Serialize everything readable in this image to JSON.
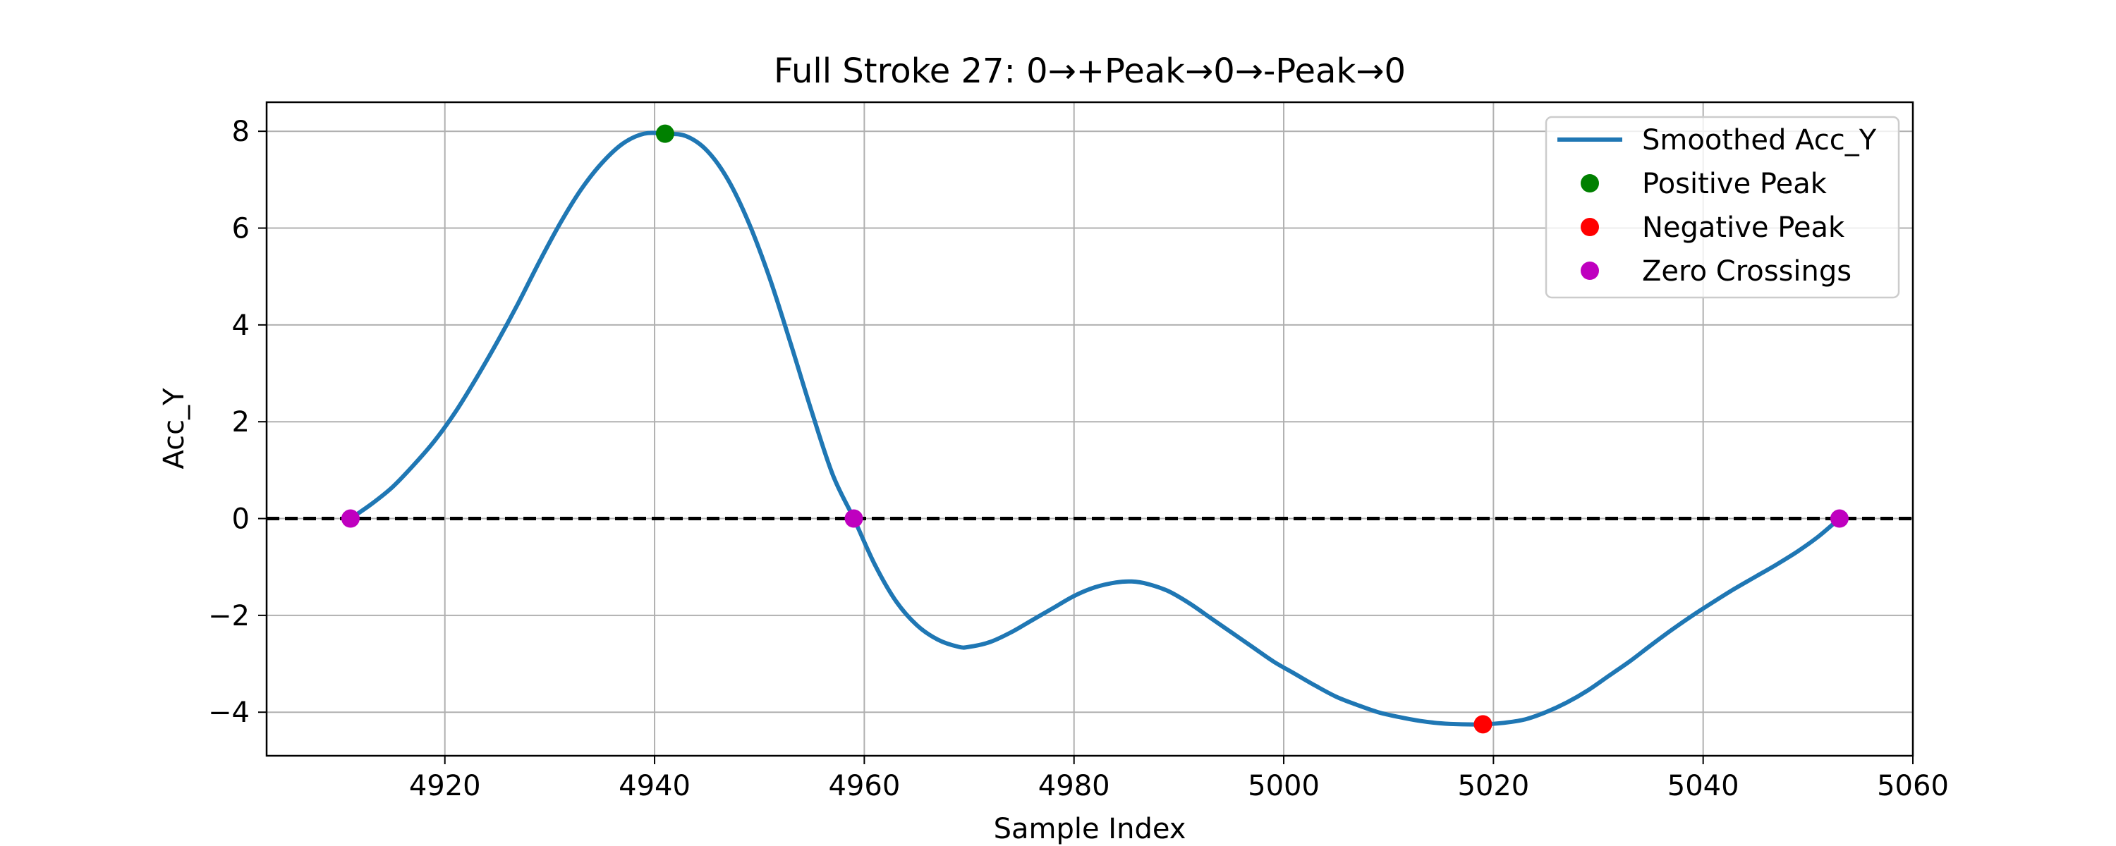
{
  "chart_data": {
    "type": "line",
    "title": "Full Stroke 27: 0→+Peak→0→-Peak→0",
    "xlabel": "Sample Index",
    "ylabel": "Acc_Y",
    "xlim": [
      4903,
      5060
    ],
    "ylim": [
      -4.9,
      8.6
    ],
    "xticks": [
      4920,
      4940,
      4960,
      4980,
      5000,
      5020,
      5040,
      5060
    ],
    "yticks": [
      -4,
      -2,
      0,
      2,
      4,
      6,
      8
    ],
    "grid": true,
    "legend_position": "top-right",
    "zero_line": {
      "y": 0,
      "style": "dashed",
      "color": "#000000"
    },
    "series": [
      {
        "name": "Smoothed Acc_Y",
        "kind": "line",
        "color": "#1f77b4",
        "x": [
          4911,
          4913,
          4915,
          4917,
          4919,
          4921,
          4923,
          4925,
          4927,
          4929,
          4931,
          4933,
          4935,
          4937,
          4939,
          4941,
          4943,
          4945,
          4947,
          4949,
          4951,
          4953,
          4955,
          4957,
          4959,
          4961,
          4963,
          4965,
          4967,
          4969,
          4970,
          4972,
          4974,
          4976,
          4978,
          4980,
          4982,
          4984,
          4985.5,
          4987,
          4989,
          4991,
          4993,
          4995,
          4997,
          4999,
          5001,
          5003,
          5005,
          5007,
          5009,
          5011,
          5013,
          5015,
          5017,
          5019,
          5021,
          5023,
          5025,
          5027,
          5029,
          5031,
          5033,
          5035,
          5037,
          5039,
          5041,
          5043,
          5045,
          5047,
          5049,
          5051,
          5053
        ],
        "y": [
          0.0,
          0.3,
          0.65,
          1.1,
          1.6,
          2.2,
          2.9,
          3.65,
          4.45,
          5.3,
          6.1,
          6.8,
          7.35,
          7.75,
          7.95,
          7.95,
          7.9,
          7.6,
          7.0,
          6.1,
          4.95,
          3.6,
          2.2,
          0.9,
          0.0,
          -0.95,
          -1.7,
          -2.2,
          -2.5,
          -2.65,
          -2.65,
          -2.55,
          -2.35,
          -2.1,
          -1.85,
          -1.6,
          -1.42,
          -1.32,
          -1.3,
          -1.35,
          -1.5,
          -1.75,
          -2.05,
          -2.35,
          -2.65,
          -2.95,
          -3.2,
          -3.45,
          -3.68,
          -3.85,
          -4.0,
          -4.1,
          -4.18,
          -4.23,
          -4.25,
          -4.25,
          -4.22,
          -4.15,
          -4.0,
          -3.8,
          -3.55,
          -3.25,
          -2.95,
          -2.62,
          -2.3,
          -2.0,
          -1.72,
          -1.45,
          -1.2,
          -0.95,
          -0.68,
          -0.37,
          0.0
        ]
      },
      {
        "name": "Positive Peak",
        "kind": "marker",
        "color": "#008000",
        "points": [
          {
            "x": 4941,
            "y": 7.95
          }
        ]
      },
      {
        "name": "Negative Peak",
        "kind": "marker",
        "color": "#ff0000",
        "points": [
          {
            "x": 5019,
            "y": -4.25
          }
        ]
      },
      {
        "name": "Zero Crossings",
        "kind": "marker",
        "color": "#bf00bf",
        "points": [
          {
            "x": 4911,
            "y": 0
          },
          {
            "x": 4959,
            "y": 0
          },
          {
            "x": 5053,
            "y": 0
          }
        ]
      }
    ]
  }
}
